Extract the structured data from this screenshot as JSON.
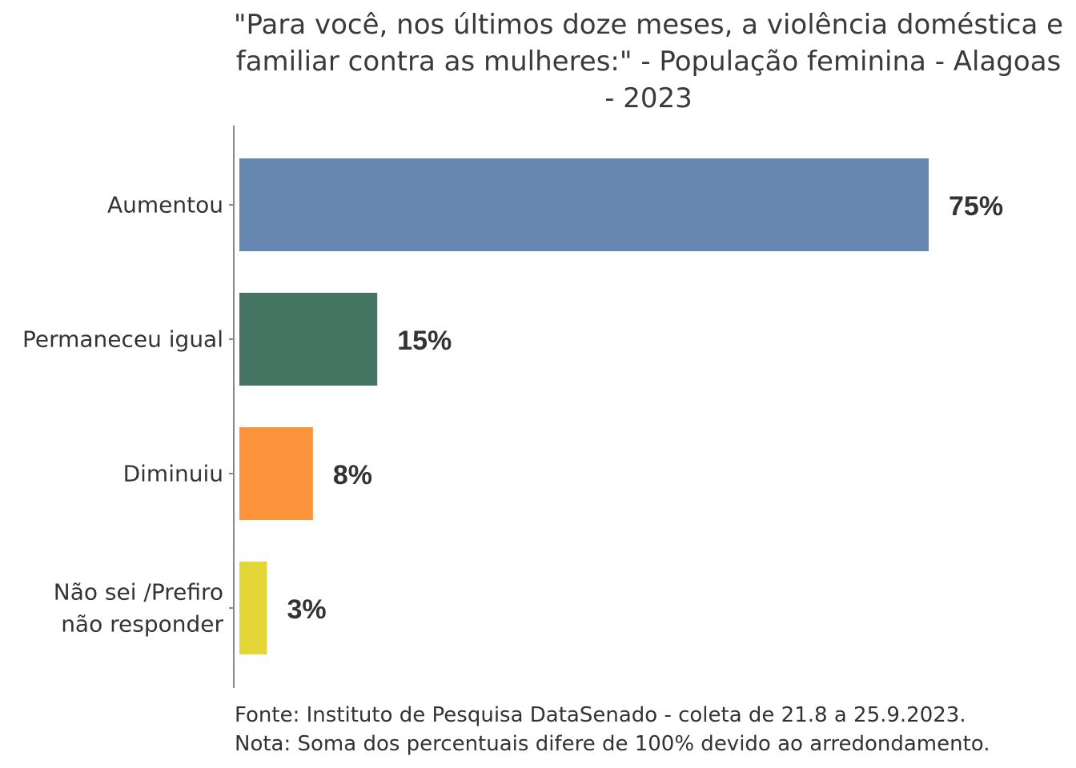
{
  "chart_data": {
    "type": "bar",
    "orientation": "horizontal",
    "title_lines": [
      "\"Para você, nos últimos doze meses, a violência doméstica e",
      "familiar contra as mulheres:\" - População feminina - Alagoas",
      "- 2023"
    ],
    "categories": [
      [
        "Aumentou"
      ],
      [
        "Permaneceu igual"
      ],
      [
        "Diminuiu"
      ],
      [
        "Não sei /Prefiro",
        "não responder"
      ]
    ],
    "values": [
      75,
      15,
      8,
      3
    ],
    "value_labels": [
      "75%",
      "15%",
      "8%",
      "3%"
    ],
    "colors": [
      "#6688b0",
      "#447462",
      "#fb923c",
      "#e5d637"
    ],
    "xlim": [
      0,
      100
    ],
    "grid": false,
    "legend": "none"
  },
  "caption": {
    "source": "Fonte: Instituto de Pesquisa DataSenado - coleta de 21.8 a 25.9.2023.",
    "note": "Nota: Soma dos percentuais difere de 100% devido ao arredondamento."
  }
}
